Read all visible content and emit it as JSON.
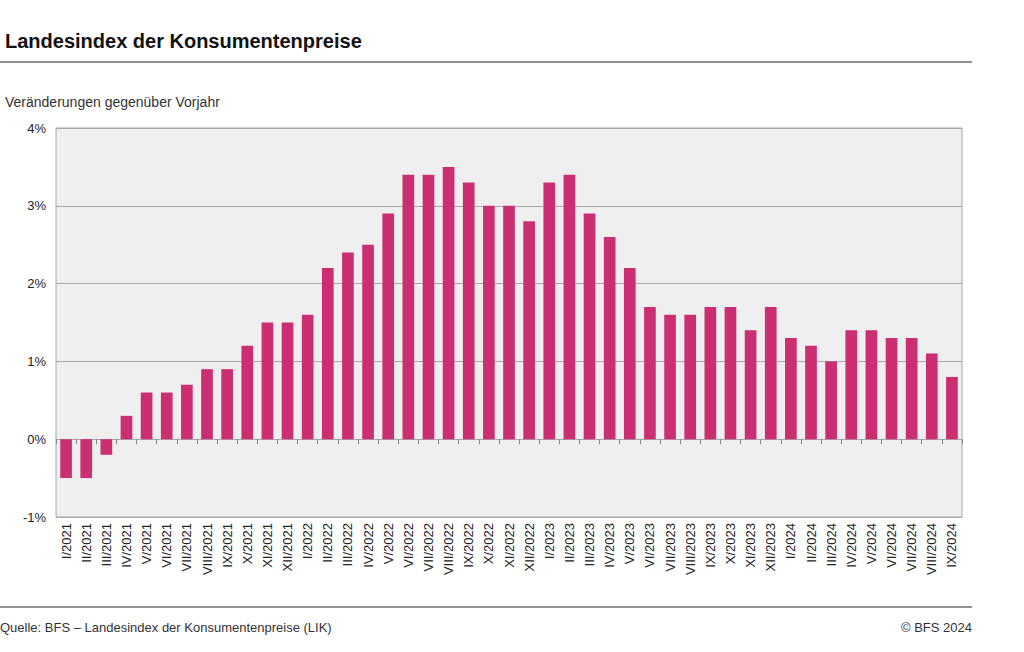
{
  "chart_data": {
    "type": "bar",
    "title": "Landesindex der Konsumentenpreise",
    "subtitle": "Veränderungen gegenüber Vorjahr",
    "source": "Quelle: BFS – Landesindex der Konsumentenpreise (LIK)",
    "copyright": "© BFS 2024",
    "categories": [
      "I/2021",
      "II/2021",
      "III/2021",
      "IV/2021",
      "V/2021",
      "VI/2021",
      "VII/2021",
      "VIII/2021",
      "IX/2021",
      "X/2021",
      "XI/2021",
      "XII/2021",
      "I/2022",
      "II/2022",
      "III/2022",
      "IV/2022",
      "V/2022",
      "VI/2022",
      "VII/2022",
      "VIII/2022",
      "IX/2022",
      "X/2022",
      "XI/2022",
      "XII/2022",
      "I/2023",
      "II/2023",
      "III/2023",
      "IV/2023",
      "V/2023",
      "VI/2023",
      "VII/2023",
      "VIII/2023",
      "IX/2023",
      "X/2023",
      "XI/2023",
      "XII/2023",
      "I/2024",
      "II/2024",
      "III/2024",
      "IV/2024",
      "V/2024",
      "VI/2024",
      "VII/2024",
      "VIII/2024",
      "IX/2024"
    ],
    "values": [
      -0.5,
      -0.5,
      -0.2,
      0.3,
      0.6,
      0.6,
      0.7,
      0.9,
      0.9,
      1.2,
      1.5,
      1.5,
      1.6,
      2.2,
      2.4,
      2.5,
      2.9,
      3.4,
      3.4,
      3.5,
      3.3,
      3.0,
      3.0,
      2.8,
      3.3,
      3.4,
      2.9,
      2.6,
      2.2,
      1.7,
      1.6,
      1.6,
      1.7,
      1.7,
      1.4,
      1.7,
      1.3,
      1.2,
      1.0,
      1.4,
      1.4,
      1.3,
      1.3,
      1.1,
      0.8
    ],
    "color": "#cc2e72",
    "ylim": [
      -1,
      4
    ],
    "yticks": [
      {
        "value": -1,
        "label": "-1%"
      },
      {
        "value": 0,
        "label": "0%"
      },
      {
        "value": 1,
        "label": "1%"
      },
      {
        "value": 2,
        "label": "2%"
      },
      {
        "value": 3,
        "label": "3%"
      },
      {
        "value": 4,
        "label": "4%"
      }
    ],
    "grid": true
  }
}
